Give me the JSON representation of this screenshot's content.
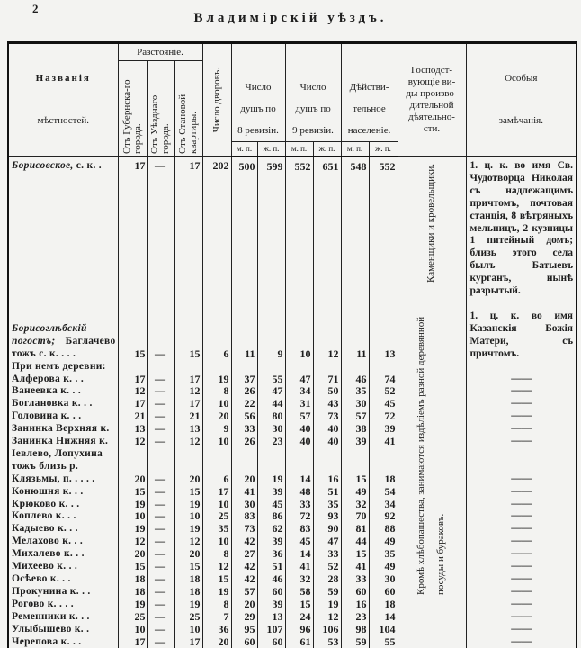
{
  "page_number": "2",
  "title": "Владимірскій уѣздъ.",
  "headers": {
    "names": [
      "Названія",
      "мѣстностей."
    ],
    "distance": "Разстояніе.",
    "from_gub": "Отъ Губернска-го города.",
    "from_uezd": "Отъ Уѣзднаго города.",
    "from_stan": "Отъ Становой квартиры.",
    "yards": "Число дворовъ.",
    "rev8": [
      "Число",
      "душъ по",
      "8 ревизіи."
    ],
    "rev9": [
      "Число",
      "душъ по",
      "9 ревизіи."
    ],
    "actual": [
      "Дѣйстви-",
      "тельное",
      "населеніе."
    ],
    "mp": "м. п.",
    "zp": "ж. п.",
    "occupation": [
      "Господст-",
      "вующіе ви-",
      "ды произво-",
      "дительной",
      "дѣятельно-",
      "сти."
    ],
    "notes": [
      "Особыя",
      "замѣчанія."
    ]
  },
  "occupations": [
    "Каменщики и кровельщики.",
    "Кромѣ хлѣбопашества, занимаются издѣліемъ разной деревянной посуды и бураковъ."
  ],
  "rows": [
    {
      "name_italic": "Борисовское,",
      "name": "с. к. .",
      "gub": "17",
      "uezd": "—",
      "stan": "17",
      "yards": "202",
      "r8m": "500",
      "r8f": "599",
      "r9m": "552",
      "r9f": "651",
      "am": "548",
      "af": "552",
      "note": "1. ц. к. во имя Св. Чудотворца Николая съ надлежащимъ причтомъ, почтовая станція, 8 вѣтряныхъ мельницъ, 2 кузницы 1 питейный домъ; близь этого села былъ Батыевъ курганъ, нынѣ разрытый."
    },
    {
      "name_italic": "Борисоглѣбскій погостъ;",
      "name": "Баглачево тожъ с. к. . . .",
      "gub": "15",
      "uezd": "—",
      "stan": "15",
      "yards": "6",
      "r8m": "11",
      "r8f": "9",
      "r9m": "10",
      "r9f": "12",
      "am": "11",
      "af": "13",
      "note": "1. ц. к. во имя Казанскія Божія Матери, съ причтомъ."
    },
    {
      "name": "При немъ деревни:"
    },
    {
      "name": "Алферова к. . .",
      "gub": "17",
      "uezd": "—",
      "stan": "17",
      "yards": "19",
      "r8m": "37",
      "r8f": "55",
      "r9m": "47",
      "r9f": "71",
      "am": "46",
      "af": "74",
      "note": "——"
    },
    {
      "name": "Ванеевка к. . .",
      "gub": "12",
      "uezd": "—",
      "stan": "12",
      "yards": "8",
      "r8m": "26",
      "r8f": "47",
      "r9m": "34",
      "r9f": "50",
      "am": "35",
      "af": "52",
      "note": "——"
    },
    {
      "name": "Боглановка к. . .",
      "gub": "17",
      "uezd": "—",
      "stan": "17",
      "yards": "10",
      "r8m": "22",
      "r8f": "44",
      "r9m": "31",
      "r9f": "43",
      "am": "30",
      "af": "45",
      "note": "——"
    },
    {
      "name": "Головина к. . .",
      "gub": "21",
      "uezd": "—",
      "stan": "21",
      "yards": "20",
      "r8m": "56",
      "r8f": "80",
      "r9m": "57",
      "r9f": "73",
      "am": "57",
      "af": "72",
      "note": "——"
    },
    {
      "name": "Занинка Верхняя к.",
      "gub": "13",
      "uezd": "—",
      "stan": "13",
      "yards": "9",
      "r8m": "33",
      "r8f": "30",
      "r9m": "40",
      "r9f": "40",
      "am": "38",
      "af": "39",
      "note": "——"
    },
    {
      "name": "Занинка Нижняя к.",
      "gub": "12",
      "uezd": "—",
      "stan": "12",
      "yards": "10",
      "r8m": "26",
      "r8f": "23",
      "r9m": "40",
      "r9f": "40",
      "am": "39",
      "af": "41",
      "note": "——"
    },
    {
      "name": "Іевлево, Лопухина тожъ близь р. Клязьмы, п. . . . .",
      "gub": "20",
      "uezd": "—",
      "stan": "20",
      "yards": "6",
      "r8m": "20",
      "r8f": "19",
      "r9m": "14",
      "r9f": "16",
      "am": "15",
      "af": "18",
      "note": "——"
    },
    {
      "name": "Конюшня к. . .",
      "gub": "15",
      "uezd": "—",
      "stan": "15",
      "yards": "17",
      "r8m": "41",
      "r8f": "39",
      "r9m": "48",
      "r9f": "51",
      "am": "49",
      "af": "54",
      "note": "——"
    },
    {
      "name": "Крюково к. . .",
      "gub": "19",
      "uezd": "—",
      "stan": "19",
      "yards": "10",
      "r8m": "30",
      "r8f": "45",
      "r9m": "33",
      "r9f": "35",
      "am": "32",
      "af": "34",
      "note": "——"
    },
    {
      "name": "Коплево к. . .",
      "gub": "10",
      "uezd": "—",
      "stan": "10",
      "yards": "25",
      "r8m": "83",
      "r8f": "86",
      "r9m": "72",
      "r9f": "93",
      "am": "70",
      "af": "92",
      "note": "——"
    },
    {
      "name": "Кадыево к. . .",
      "gub": "19",
      "uezd": "—",
      "stan": "19",
      "yards": "35",
      "r8m": "73",
      "r8f": "62",
      "r9m": "83",
      "r9f": "90",
      "am": "81",
      "af": "88",
      "note": "——"
    },
    {
      "name": "Мелахово к. . .",
      "gub": "12",
      "uezd": "—",
      "stan": "12",
      "yards": "10",
      "r8m": "42",
      "r8f": "39",
      "r9m": "45",
      "r9f": "47",
      "am": "44",
      "af": "49",
      "note": "——"
    },
    {
      "name": "Михалево к. . .",
      "gub": "20",
      "uezd": "—",
      "stan": "20",
      "yards": "8",
      "r8m": "27",
      "r8f": "36",
      "r9m": "14",
      "r9f": "33",
      "am": "15",
      "af": "35",
      "note": "——"
    },
    {
      "name": "Михеево к. . .",
      "gub": "15",
      "uezd": "—",
      "stan": "15",
      "yards": "12",
      "r8m": "42",
      "r8f": "51",
      "r9m": "41",
      "r9f": "52",
      "am": "41",
      "af": "49",
      "note": "——"
    },
    {
      "name": "Осѣево к. . .",
      "gub": "18",
      "uezd": "—",
      "stan": "18",
      "yards": "15",
      "r8m": "42",
      "r8f": "46",
      "r9m": "32",
      "r9f": "28",
      "am": "33",
      "af": "30",
      "note": "——"
    },
    {
      "name": "Прокунина к. . .",
      "gub": "18",
      "uezd": "—",
      "stan": "18",
      "yards": "19",
      "r8m": "57",
      "r8f": "60",
      "r9m": "58",
      "r9f": "59",
      "am": "60",
      "af": "60",
      "note": "——"
    },
    {
      "name": "Рогово к. . . .",
      "gub": "19",
      "uezd": "—",
      "stan": "19",
      "yards": "8",
      "r8m": "20",
      "r8f": "39",
      "r9m": "15",
      "r9f": "19",
      "am": "16",
      "af": "18",
      "note": "——"
    },
    {
      "name": "Ременники к. . .",
      "gub": "25",
      "uezd": "—",
      "stan": "25",
      "yards": "7",
      "r8m": "29",
      "r8f": "13",
      "r9m": "24",
      "r9f": "12",
      "am": "23",
      "af": "14",
      "note": "——"
    },
    {
      "name": "Улыбышево к. .",
      "gub": "10",
      "uezd": "—",
      "stan": "10",
      "yards": "36",
      "r8m": "95",
      "r8f": "107",
      "r9m": "96",
      "r9f": "106",
      "am": "98",
      "af": "104",
      "note": "——"
    },
    {
      "name": "Черепова к. . .",
      "gub": "17",
      "uezd": "—",
      "stan": "17",
      "yards": "20",
      "r8m": "60",
      "r8f": "60",
      "r9m": "61",
      "r9f": "53",
      "am": "59",
      "af": "55",
      "note": "——"
    }
  ]
}
